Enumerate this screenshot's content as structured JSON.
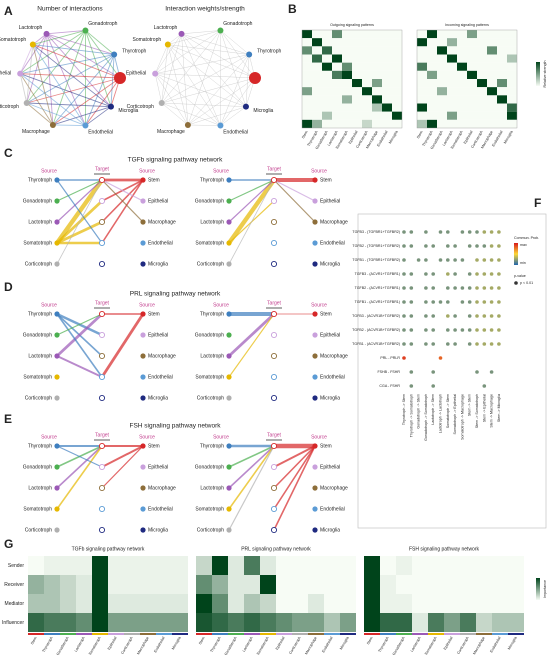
{
  "panel_labels": [
    "A",
    "B",
    "C",
    "D",
    "E",
    "F",
    "G"
  ],
  "network": {
    "titles": [
      "Number of interactions",
      "Interaction weights/strength"
    ],
    "nodes": [
      "Lactotroph",
      "Gonadotroph",
      "Thyrotroph",
      "Stem",
      "Microglia",
      "Endothelial",
      "Macrophage",
      "Corticotroph",
      "Epithelial",
      "Somatotroph"
    ],
    "node_colors": [
      "#9b59b6",
      "#4caf50",
      "#3f7fbf",
      "#d62728",
      "#1f2a80",
      "#5b9bd5",
      "#8d6e3a",
      "#b0b0b0",
      "#c9a0dc",
      "#e6b800"
    ],
    "node_labels_shown": [
      "Lactotroph",
      "Gonadotroph",
      "Thyrotroph",
      null,
      "Microglia",
      "Endothelial",
      "Macrophage",
      "Corticotroph",
      "Epithelial",
      "Somatotroph"
    ]
  },
  "signaling_patterns": {
    "titles": [
      "Outgoing signaling patterns",
      "Incoming signaling patterns"
    ],
    "legend_title": "Relative strength",
    "columns": [
      "Stem",
      "Thyrotroph",
      "Gonadotroph",
      "Lactotroph",
      "Somatotroph",
      "Epithelial",
      "Corticotroph",
      "Macrophage",
      "Endothelial",
      "Microglia"
    ],
    "outgoing": [
      [
        1,
        0,
        0,
        0.6,
        0,
        0,
        0,
        0,
        0,
        0
      ],
      [
        0,
        1,
        0,
        0,
        0,
        0,
        0,
        0,
        0,
        0
      ],
      [
        0.6,
        0,
        0.8,
        0,
        0,
        0,
        0,
        0,
        0,
        0
      ],
      [
        0,
        0.8,
        0,
        1,
        0,
        0,
        0,
        0,
        0,
        0
      ],
      [
        0,
        0,
        1,
        0,
        0.6,
        0,
        0,
        0,
        0,
        0
      ],
      [
        0,
        0,
        0,
        0.7,
        1,
        0,
        0,
        0,
        0,
        0
      ],
      [
        0,
        0,
        0,
        0,
        0,
        1,
        0,
        0.5,
        0,
        0
      ],
      [
        0.5,
        0,
        0,
        0,
        0,
        0,
        1,
        0,
        0,
        0
      ],
      [
        0,
        0,
        0,
        0,
        0.4,
        0,
        0,
        1,
        0,
        0
      ],
      [
        0,
        0,
        0,
        0,
        0,
        0,
        0,
        0.3,
        1,
        0
      ],
      [
        0,
        0,
        0.3,
        0,
        0,
        0,
        0,
        0,
        0,
        1
      ],
      [
        1,
        0.4,
        0,
        0,
        0,
        0,
        0.2,
        0,
        0,
        0
      ]
    ],
    "incoming": [
      [
        0,
        1,
        0,
        0,
        0,
        0.5,
        0,
        0,
        0,
        0
      ],
      [
        1,
        0,
        0,
        0.4,
        0,
        0,
        0,
        0,
        0,
        0
      ],
      [
        0,
        0,
        1,
        0,
        0,
        0,
        0,
        0.6,
        0,
        0
      ],
      [
        0,
        0,
        0,
        1,
        0,
        0,
        0,
        0,
        0,
        0.3
      ],
      [
        0.7,
        0,
        0,
        0,
        1,
        0,
        0,
        0,
        0,
        0
      ],
      [
        0,
        0.5,
        0,
        0,
        0,
        1,
        0,
        0,
        0,
        0
      ],
      [
        0,
        0,
        0,
        0,
        0,
        0,
        1,
        0,
        0.6,
        0
      ],
      [
        0,
        0,
        0.4,
        0,
        0,
        0,
        0,
        1,
        0,
        0
      ],
      [
        0,
        0,
        0,
        0,
        0,
        0,
        0,
        0,
        1,
        0
      ],
      [
        1,
        0,
        0,
        0,
        0,
        0,
        0,
        0,
        0,
        0.8
      ],
      [
        0,
        0,
        0,
        0.5,
        0,
        0,
        0,
        0,
        0,
        1
      ],
      [
        0.3,
        1,
        0,
        0,
        0,
        0,
        0,
        0,
        0,
        0
      ]
    ],
    "color_low": "#f7fcf5",
    "color_high": "#00441b"
  },
  "hierarchy": {
    "headers": [
      "Source",
      "Target"
    ],
    "sources": [
      "Thyrotroph",
      "Gonadotroph",
      "Lactotroph",
      "Somatotroph",
      "Corticotroph"
    ],
    "source_colors": [
      "#3f7fbf",
      "#4caf50",
      "#9b59b6",
      "#e6b800",
      "#b0b0b0"
    ],
    "targets": [
      "Stem",
      "Epithelial",
      "Macrophage",
      "Endothelial",
      "Microglia"
    ],
    "target_colors": [
      "#d62728",
      "#c9a0dc",
      "#8d6e3a",
      "#5b9bd5",
      "#1f2a80"
    ],
    "pathways": [
      {
        "title": "TGFb signaling pathway network",
        "plots": [
          {
            "left_edges": [
              [
                3,
                0,
                1
              ],
              [
                3,
                1,
                0.6
              ],
              [
                3,
                2,
                0.6
              ],
              [
                3,
                3,
                0.5
              ],
              [
                0,
                0,
                0.3
              ],
              [
                1,
                0,
                0.2
              ],
              [
                2,
                0,
                0.2
              ],
              [
                0,
                3,
                0.2
              ],
              [
                4,
                0,
                0.1
              ]
            ],
            "right_edges": [
              [
                0,
                0,
                0.6
              ],
              [
                0,
                1,
                0.3
              ],
              [
                0,
                2,
                0.3
              ],
              [
                0,
                3,
                0.3
              ],
              [
                1,
                0,
                0.2
              ],
              [
                2,
                0,
                0.2
              ]
            ]
          },
          {
            "left_edges": [
              [
                3,
                0,
                1
              ],
              [
                0,
                0,
                0.3
              ],
              [
                3,
                1,
                0.2
              ],
              [
                1,
                0,
                0.2
              ],
              [
                2,
                0,
                0.2
              ],
              [
                4,
                0,
                0.1
              ]
            ],
            "right_edges": [
              [
                0,
                0,
                0.9
              ],
              [
                1,
                0,
                0.2
              ],
              [
                2,
                0,
                0.2
              ]
            ]
          }
        ]
      },
      {
        "title": "PRL signaling pathway network",
        "plots": [
          {
            "left_edges": [
              [
                0,
                1,
                0.5
              ],
              [
                0,
                2,
                0.3
              ],
              [
                2,
                0,
                0.6
              ],
              [
                2,
                3,
                0.4
              ],
              [
                0,
                3,
                0.3
              ],
              [
                1,
                0,
                0.2
              ]
            ],
            "right_edges": [
              [
                0,
                3,
                0.6
              ],
              [
                0,
                0,
                0.3
              ]
            ]
          },
          {
            "left_edges": [
              [
                0,
                0,
                0.9
              ],
              [
                2,
                0,
                0.6
              ],
              [
                3,
                0,
                0.2
              ]
            ],
            "right_edges": [
              [
                0,
                0,
                0.1
              ]
            ]
          }
        ]
      },
      {
        "title": "FSH signaling pathway network",
        "plots": [
          {
            "left_edges": [
              [
                0,
                0,
                0.4
              ],
              [
                1,
                0,
                0.3
              ],
              [
                2,
                0,
                0.3
              ],
              [
                3,
                0,
                0.3
              ],
              [
                0,
                1,
                0.2
              ]
            ],
            "right_edges": [
              [
                0,
                0,
                0.4
              ],
              [
                0,
                1,
                0.4
              ],
              [
                0,
                2,
                0.2
              ]
            ]
          },
          {
            "left_edges": [
              [
                0,
                0,
                0.5
              ],
              [
                1,
                0,
                0.3
              ],
              [
                2,
                0,
                0.3
              ],
              [
                3,
                0,
                0.3
              ],
              [
                4,
                0,
                0.2
              ]
            ],
            "right_edges": [
              [
                0,
                0,
                1
              ],
              [
                0,
                1,
                0.4
              ],
              [
                0,
                2,
                0.3
              ],
              [
                0,
                3,
                0.3
              ],
              [
                0,
                4,
                0.3
              ]
            ]
          }
        ]
      }
    ]
  },
  "dotplot": {
    "rows": [
      "TGFB3 - (TGFBR1+TGFBR2)",
      "TGFB2 - (TGFBR1+TGFBR2)",
      "TGFB1 - (TGFBR1+TGFBR2)",
      "TGFB3 - (ACVR1+TGFBR1)",
      "TGFB2 - (ACVR1+TGFBR1)",
      "TGFB1 - (ACVR1+TGFBR1)",
      "TGFB3 - (ACVR1B+TGFBR2)",
      "TGFB2 - (ACVR1B+TGFBR2)",
      "TGFB1 - (ACVR1B+TGFBR2)",
      "PRL - PRLR",
      "FSHB - FSHR",
      "CGA - FSHR"
    ],
    "columns": [
      "Thyrotroph -> Stem",
      "Thyrotroph -> Somatotroph",
      "Gonadotroph -> Stem",
      "Gonadotroph -> Somatotroph",
      "Lactotroph -> Stem",
      "Lactotroph -> Lactotroph",
      "Somatotroph -> Stem",
      "Somatotroph -> Epithelial",
      "Somatotroph -> Macrophage",
      "Stem -> Stem",
      "Stem -> Somatotroph",
      "Stem -> Epithelial",
      "Stem -> Macrophage",
      "Stem -> Microglia"
    ],
    "values": [
      [
        0.2,
        0.2,
        null,
        0.2,
        null,
        0.2,
        0.2,
        null,
        0.2,
        0.2,
        0.2,
        0.3,
        0.3,
        0.3
      ],
      [
        0.2,
        0.2,
        null,
        0.2,
        0.2,
        null,
        0.2,
        0.2,
        null,
        0.2,
        0.2,
        0.2,
        0.3,
        0.3
      ],
      [
        0.2,
        null,
        0.2,
        0.2,
        null,
        0.2,
        0.2,
        0.2,
        0.2,
        null,
        0.3,
        0.3,
        0.3,
        0.3
      ],
      [
        0.2,
        0.2,
        null,
        0.2,
        0.2,
        null,
        0.3,
        0.2,
        null,
        0.2,
        0.3,
        0.3,
        0.3,
        0.3
      ],
      [
        0.2,
        0.2,
        null,
        0.2,
        0.2,
        null,
        0.2,
        0.2,
        0.2,
        0.2,
        0.3,
        0.3,
        0.3,
        0.3
      ],
      [
        0.2,
        0.2,
        null,
        0.2,
        0.2,
        0.2,
        0.2,
        null,
        0.2,
        0.2,
        0.3,
        0.3,
        0.3,
        0.3
      ],
      [
        0.2,
        0.2,
        null,
        0.2,
        0.2,
        null,
        0.3,
        0.2,
        null,
        0.2,
        0.3,
        0.3,
        0.3,
        0.3
      ],
      [
        0.2,
        0.2,
        null,
        0.2,
        0.2,
        null,
        0.2,
        0.2,
        0.2,
        0.2,
        0.3,
        0.3,
        0.3,
        0.3
      ],
      [
        0.2,
        0.2,
        null,
        0.2,
        0.2,
        null,
        0.2,
        0.2,
        null,
        0.2,
        0.3,
        0.3,
        0.3,
        0.3
      ],
      [
        0.9,
        null,
        null,
        null,
        null,
        0.8,
        null,
        null,
        null,
        null,
        null,
        null,
        null,
        null
      ],
      [
        null,
        0.2,
        null,
        null,
        0.2,
        null,
        null,
        null,
        null,
        null,
        0.2,
        null,
        0.2,
        null
      ],
      [
        null,
        0.2,
        null,
        null,
        0.2,
        null,
        null,
        null,
        null,
        null,
        null,
        0.2,
        null,
        null
      ]
    ],
    "legend_title": "Commun. Prob.",
    "legend_labels": [
      "min",
      "max"
    ],
    "pvalue_title": "p-value",
    "pvalue_label": "p < 0.01",
    "colors": [
      "#2166ac",
      "#fdd835",
      "#d7191c"
    ]
  },
  "centrality": {
    "rows": [
      "Sender",
      "Receiver",
      "Mediator",
      "Influencer"
    ],
    "columns": [
      "Stem",
      "Thyrotroph",
      "Gonadotroph",
      "Lactotroph",
      "Somatotroph",
      "Epithelial",
      "Corticotroph",
      "Macrophage",
      "Endothelial",
      "Microglia"
    ],
    "legend_title": "Importance",
    "color_low": "#f7fcf5",
    "color_high": "#00441b",
    "column_colors": [
      "#d62728",
      "#3f7fbf",
      "#4caf50",
      "#9b59b6",
      "#e6b800",
      "#c9a0dc",
      "#b0b0b0",
      "#8d6e3a",
      "#5b9bd5",
      "#1f2a80"
    ],
    "heatmaps": [
      {
        "title": "TGFb signaling pathway network",
        "values": [
          [
            0,
            0.05,
            0.05,
            0.05,
            1,
            0.05,
            0.05,
            0.05,
            0.05,
            0.05
          ],
          [
            0.4,
            0.3,
            0.2,
            0.1,
            1,
            0.05,
            0.05,
            0.05,
            0.05,
            0.05
          ],
          [
            0.3,
            0.3,
            0.2,
            0.1,
            1,
            0.1,
            0.1,
            0.1,
            0.1,
            0.1
          ],
          [
            0.8,
            0.7,
            0.7,
            0.6,
            1,
            0.5,
            0.5,
            0.5,
            0.5,
            0.5
          ]
        ]
      },
      {
        "title": "PRL signaling pathway network",
        "values": [
          [
            0.2,
            1,
            0.1,
            0.7,
            0.1,
            0,
            0,
            0,
            0,
            0
          ],
          [
            0.6,
            0.4,
            0.1,
            0.1,
            1,
            0,
            0,
            0,
            0,
            0
          ],
          [
            1,
            0.6,
            0.1,
            0.3,
            0.2,
            0,
            0,
            0.1,
            0,
            0
          ],
          [
            0.9,
            0.8,
            0.7,
            0.8,
            0.7,
            0.6,
            0.5,
            0.5,
            0.3,
            0.5
          ]
        ]
      },
      {
        "title": "FSH signaling pathway network",
        "values": [
          [
            1,
            0,
            0.05,
            0,
            0,
            0,
            0,
            0,
            0,
            0
          ],
          [
            1,
            0.05,
            0,
            0,
            0,
            0,
            0,
            0,
            0,
            0
          ],
          [
            1,
            0.05,
            0.05,
            0,
            0,
            0,
            0,
            0,
            0,
            0
          ],
          [
            1,
            0.8,
            0.8,
            0.1,
            0.7,
            0.5,
            0.7,
            0.2,
            0.3,
            0.3
          ]
        ]
      }
    ]
  }
}
